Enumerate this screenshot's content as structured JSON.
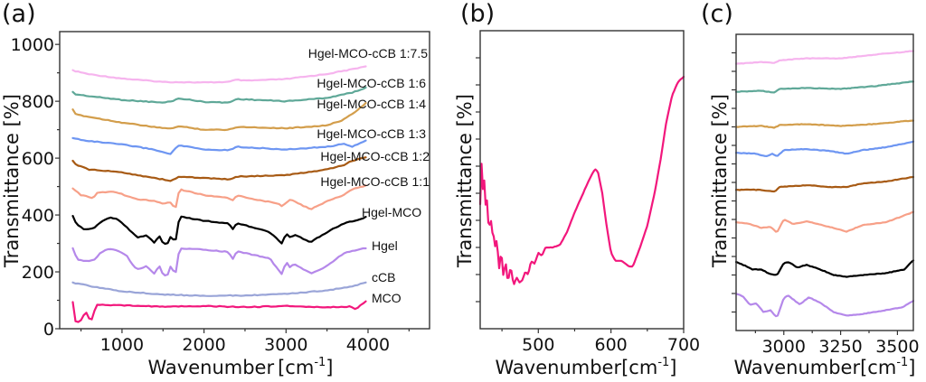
{
  "chart_data": [
    {
      "panel": "(a)",
      "type": "line",
      "title": "",
      "xlabel": "Wavenumber",
      "xlabel_unit": "[cm",
      "xlabel_sup": "-1",
      "xlabel_close": "]",
      "ylabel": "Transmittance [%]",
      "xlim": [
        240,
        4750
      ],
      "ylim": [
        0,
        1045
      ],
      "xticks": [
        1000,
        2000,
        3000,
        4000
      ],
      "xtick_labels": [
        "1000",
        "2000",
        "3000",
        "4000"
      ],
      "xminor": [
        500,
        1500,
        2500,
        3500,
        4500
      ],
      "yticks": [
        0,
        200,
        400,
        600,
        800,
        1000
      ],
      "ytick_labels": [
        "0",
        "200",
        "400",
        "600",
        "800",
        "1000"
      ],
      "yminor": [
        100,
        300,
        500,
        700,
        900
      ],
      "grid": false,
      "legend": "inline labels at right end of each curve",
      "series": [
        {
          "name": "Hgel-MCO-cCB 1:7.5",
          "color": "#F6B4EE",
          "x": [
            400,
            600,
            1000,
            1500,
            2000,
            2300,
            2400,
            2500,
            3000,
            3500,
            3800,
            4000
          ],
          "y": [
            908,
            895,
            880,
            868,
            866,
            868,
            876,
            872,
            878,
            896,
            912,
            925
          ]
        },
        {
          "name": "Hgel-MCO-cCB 1:6",
          "color": "#5FA898",
          "x": [
            400,
            420,
            600,
            1000,
            1500,
            1600,
            1700,
            2000,
            2300,
            2400,
            3000,
            3500,
            3800,
            4000
          ],
          "y": [
            832,
            825,
            818,
            805,
            795,
            800,
            810,
            798,
            795,
            808,
            800,
            812,
            830,
            850
          ]
        },
        {
          "name": "Hgel-MCO-cCB 1:4",
          "color": "#D39E4C",
          "x": [
            400,
            420,
            600,
            1000,
            1500,
            1600,
            1700,
            2000,
            2300,
            2400,
            3000,
            3500,
            3700,
            3850,
            4000
          ],
          "y": [
            770,
            755,
            745,
            725,
            705,
            705,
            712,
            700,
            700,
            710,
            705,
            715,
            735,
            765,
            800
          ]
        },
        {
          "name": "Hgel-MCO-cCB 1:3",
          "color": "#6E96F2",
          "x": [
            400,
            600,
            1000,
            1400,
            1500,
            1600,
            1650,
            1700,
            2000,
            2300,
            2400,
            3000,
            3500,
            3700,
            3800,
            4000
          ],
          "y": [
            670,
            660,
            648,
            630,
            620,
            615,
            635,
            645,
            630,
            628,
            640,
            630,
            640,
            650,
            640,
            665
          ]
        },
        {
          "name": "Hgel-MCO-cCB 1:2",
          "color": "#A75A14",
          "x": [
            400,
            450,
            600,
            1000,
            1500,
            1600,
            1700,
            2000,
            2300,
            2400,
            3000,
            3500,
            3700,
            3800,
            4000
          ],
          "y": [
            590,
            575,
            560,
            550,
            525,
            520,
            535,
            530,
            525,
            535,
            540,
            560,
            575,
            590,
            605
          ]
        },
        {
          "name": "Hgel-MCO-cCB 1:1",
          "color": "#F7A088",
          "x": [
            400,
            500,
            650,
            700,
            900,
            1200,
            1400,
            1500,
            1600,
            1650,
            1700,
            2000,
            2300,
            2350,
            2400,
            2900,
            2950,
            3050,
            3300,
            3500,
            3700,
            3800,
            4000
          ],
          "y": [
            492,
            470,
            460,
            480,
            482,
            455,
            450,
            440,
            445,
            420,
            490,
            470,
            460,
            450,
            468,
            440,
            432,
            455,
            420,
            448,
            470,
            490,
            505
          ]
        },
        {
          "name": "Hgel-MCO",
          "color": "#000000",
          "x": [
            400,
            450,
            550,
            650,
            750,
            850,
            950,
            1050,
            1150,
            1200,
            1300,
            1400,
            1450,
            1500,
            1550,
            1600,
            1650,
            1700,
            2000,
            2300,
            2350,
            2400,
            2800,
            2950,
            3000,
            3050,
            3100,
            3300,
            3500,
            3700,
            3900,
            4000
          ],
          "y": [
            398,
            365,
            348,
            352,
            378,
            392,
            385,
            360,
            330,
            320,
            330,
            300,
            330,
            300,
            295,
            330,
            300,
            395,
            380,
            370,
            350,
            372,
            340,
            300,
            335,
            320,
            330,
            305,
            340,
            370,
            385,
            395
          ]
        },
        {
          "name": "Hgel",
          "color": "#B588EA",
          "x": [
            400,
            450,
            550,
            650,
            750,
            850,
            950,
            1050,
            1150,
            1200,
            1300,
            1400,
            1450,
            1500,
            1550,
            1600,
            1650,
            1700,
            2000,
            2300,
            2350,
            2400,
            2800,
            2950,
            3000,
            3050,
            3100,
            3300,
            3500,
            3700,
            3900,
            4000
          ],
          "y": [
            282,
            245,
            238,
            240,
            270,
            282,
            275,
            260,
            215,
            210,
            220,
            190,
            225,
            190,
            185,
            225,
            185,
            282,
            278,
            270,
            245,
            272,
            248,
            190,
            235,
            215,
            228,
            195,
            220,
            265,
            280,
            285
          ]
        },
        {
          "name": "cCB",
          "color": "#9AA5D8",
          "x": [
            400,
            700,
            1000,
            1500,
            2000,
            2500,
            3000,
            3500,
            3800,
            4000
          ],
          "y": [
            162,
            145,
            132,
            120,
            116,
            117,
            122,
            135,
            148,
            165
          ]
        },
        {
          "name": "MCO",
          "color": "#F2177C",
          "x": [
            400,
            420,
            450,
            500,
            560,
            620,
            660,
            700,
            1000,
            1500,
            2000,
            2500,
            3000,
            3500,
            3800,
            3850,
            3900,
            4000
          ],
          "y": [
            95,
            30,
            20,
            30,
            60,
            22,
            60,
            85,
            82,
            78,
            80,
            76,
            80,
            75,
            78,
            68,
            82,
            100
          ]
        }
      ]
    },
    {
      "panel": "(b)",
      "type": "line",
      "title": "",
      "xlabel": "Wavenumber",
      "xlabel_unit": "[cm",
      "xlabel_sup": "-1",
      "xlabel_close": "]",
      "ylabel": "Transmittance [%]",
      "xlim": [
        420,
        700
      ],
      "ylim": [
        0,
        11
      ],
      "xticks": [
        500,
        600,
        700
      ],
      "xtick_labels": [
        "500",
        "600",
        "700"
      ],
      "xminor": [
        450,
        550,
        650
      ],
      "yticks_unlabeled": [
        1,
        2,
        3,
        4,
        5,
        6,
        7,
        8,
        9,
        10
      ],
      "grid": false,
      "series": [
        {
          "name": "MCO",
          "color": "#F2177C",
          "x": [
            420,
            422,
            424,
            426,
            428,
            430,
            432,
            434,
            436,
            438,
            440,
            443,
            446,
            449,
            452,
            455,
            458,
            462,
            466,
            470,
            474,
            478,
            482,
            486,
            490,
            495,
            500,
            505,
            510,
            520,
            530,
            540,
            550,
            560,
            570,
            578,
            582,
            588,
            594,
            600,
            606,
            615,
            625,
            630,
            640,
            650,
            660,
            668,
            676,
            684,
            692,
            700
          ],
          "y": [
            4.6,
            6.2,
            5.0,
            5.6,
            4.2,
            5.0,
            3.2,
            4.4,
            3.5,
            3.6,
            3.0,
            3.3,
            2.2,
            2.9,
            1.9,
            2.5,
            1.7,
            2.3,
            1.6,
            1.9,
            1.7,
            1.8,
            2.1,
            2.0,
            2.5,
            2.4,
            2.8,
            2.7,
            3.0,
            3.0,
            3.1,
            3.6,
            4.3,
            4.9,
            5.5,
            5.9,
            5.8,
            5.0,
            3.8,
            2.8,
            2.5,
            2.5,
            2.3,
            2.3,
            3.0,
            3.8,
            5.0,
            6.2,
            7.6,
            8.6,
            9.1,
            9.3
          ]
        }
      ]
    },
    {
      "panel": "(c)",
      "type": "line",
      "title": "",
      "xlabel": "Wavenumber",
      "xlabel_unit": "[cm",
      "xlabel_sup": "-1",
      "xlabel_close": "]",
      "ylabel": "Transmittance [%]",
      "xlim": [
        2790,
        3570
      ],
      "ylim": [
        0,
        16
      ],
      "xticks": [
        3000,
        3250,
        3500
      ],
      "xtick_labels": [
        "3000",
        "3250",
        "3500"
      ],
      "xminor": [
        2875,
        3125,
        3375
      ],
      "yticks_unlabeled": [
        1,
        2,
        3,
        4,
        5,
        6,
        7,
        8,
        9,
        10,
        11,
        12,
        13,
        14,
        15
      ],
      "grid": false,
      "series": [
        {
          "name": "Hgel-MCO-cCB 1:7.5",
          "color": "#F6B4EE",
          "x": [
            2790,
            2900,
            2960,
            2980,
            3100,
            3250,
            3400,
            3570
          ],
          "y": [
            14.4,
            14.5,
            14.45,
            14.6,
            14.7,
            14.7,
            14.9,
            15.1
          ]
        },
        {
          "name": "Hgel-MCO-cCB 1:6",
          "color": "#5FA898",
          "x": [
            2790,
            2900,
            2960,
            2980,
            3100,
            3250,
            3400,
            3570
          ],
          "y": [
            12.9,
            12.95,
            12.85,
            13.05,
            13.1,
            13.05,
            13.2,
            13.45
          ]
        },
        {
          "name": "Hgel-MCO-cCB 1:4",
          "color": "#D39E4C",
          "x": [
            2790,
            2900,
            2960,
            2980,
            3100,
            3250,
            3400,
            3570
          ],
          "y": [
            11.0,
            11.05,
            10.95,
            11.1,
            11.15,
            11.05,
            11.15,
            11.35
          ]
        },
        {
          "name": "Hgel-MCO-cCB 1:3",
          "color": "#6E96F2",
          "x": [
            2790,
            2880,
            2920,
            2950,
            2970,
            3000,
            3100,
            3200,
            3275,
            3350,
            3450,
            3570
          ],
          "y": [
            9.6,
            9.55,
            9.4,
            9.55,
            9.4,
            9.75,
            9.8,
            9.7,
            9.55,
            9.75,
            9.9,
            10.2
          ]
        },
        {
          "name": "Hgel-MCO-cCB 1:2",
          "color": "#A75A14",
          "x": [
            2790,
            2900,
            2960,
            2980,
            3100,
            3200,
            3275,
            3350,
            3450,
            3570
          ],
          "y": [
            7.6,
            7.6,
            7.5,
            7.75,
            7.85,
            7.75,
            7.75,
            7.95,
            8.05,
            8.3
          ]
        },
        {
          "name": "Hgel-MCO-cCB 1:1",
          "color": "#F7A088",
          "x": [
            2790,
            2850,
            2900,
            2940,
            2970,
            3000,
            3040,
            3100,
            3200,
            3275,
            3350,
            3450,
            3570
          ],
          "y": [
            5.85,
            5.75,
            5.55,
            5.6,
            5.3,
            6.0,
            5.75,
            5.9,
            5.6,
            5.35,
            5.7,
            5.85,
            6.4
          ]
        },
        {
          "name": "Hgel-MCO",
          "color": "#000000",
          "x": [
            2790,
            2830,
            2860,
            2900,
            2940,
            2970,
            3000,
            3020,
            3060,
            3100,
            3150,
            3220,
            3275,
            3350,
            3450,
            3530,
            3570
          ],
          "y": [
            3.7,
            3.5,
            3.3,
            3.3,
            3.05,
            3.0,
            3.65,
            3.7,
            3.4,
            3.55,
            3.35,
            3.0,
            2.9,
            3.0,
            3.1,
            3.3,
            3.8
          ]
        },
        {
          "name": "Hgel",
          "color": "#B588EA",
          "x": [
            2790,
            2820,
            2850,
            2880,
            2910,
            2940,
            2970,
            3000,
            3020,
            3070,
            3110,
            3160,
            3220,
            3275,
            3350,
            3450,
            3520,
            3570
          ],
          "y": [
            2.0,
            1.85,
            1.4,
            1.45,
            1.0,
            1.1,
            0.7,
            1.75,
            1.9,
            1.4,
            1.8,
            1.5,
            1.0,
            0.8,
            0.9,
            1.1,
            1.25,
            1.6
          ]
        }
      ]
    }
  ]
}
